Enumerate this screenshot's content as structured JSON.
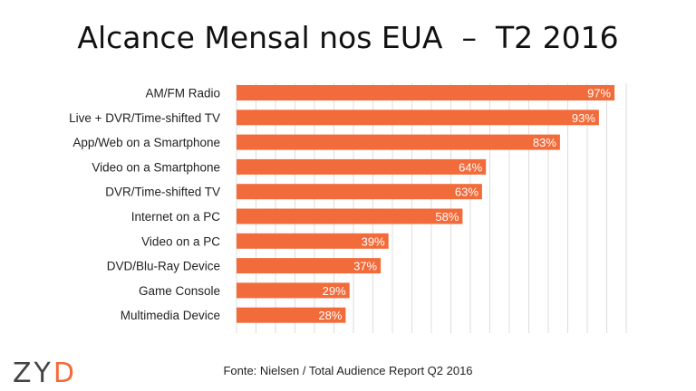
{
  "title": "Alcance Mensal nos EUA  –  T2 2016",
  "source": "Fonte: Nielsen / Total Audience Report Q2 2016",
  "logo": {
    "part1": "ZY",
    "part2": "D"
  },
  "colors": {
    "bar": "#f26b3a",
    "grid": "#dddddd",
    "label": "#222222",
    "value": "#ffffff"
  },
  "chart_data": {
    "type": "bar",
    "orientation": "horizontal",
    "categories": [
      "AM/FM Radio",
      "Live + DVR/Time-shifted TV",
      "App/Web on a Smartphone",
      "Video on a Smartphone",
      "DVR/Time-shifted TV",
      "Internet on a PC",
      "Video on a PC",
      "DVD/Blu-Ray Device",
      "Game Console",
      "Multimedia Device"
    ],
    "values": [
      97,
      93,
      83,
      64,
      63,
      58,
      39,
      37,
      29,
      28
    ],
    "data_labels": [
      "97%",
      "93%",
      "83%",
      "64%",
      "63%",
      "58%",
      "39%",
      "37%",
      "29%",
      "28%"
    ],
    "xlim": [
      0,
      100
    ],
    "grid": true
  }
}
